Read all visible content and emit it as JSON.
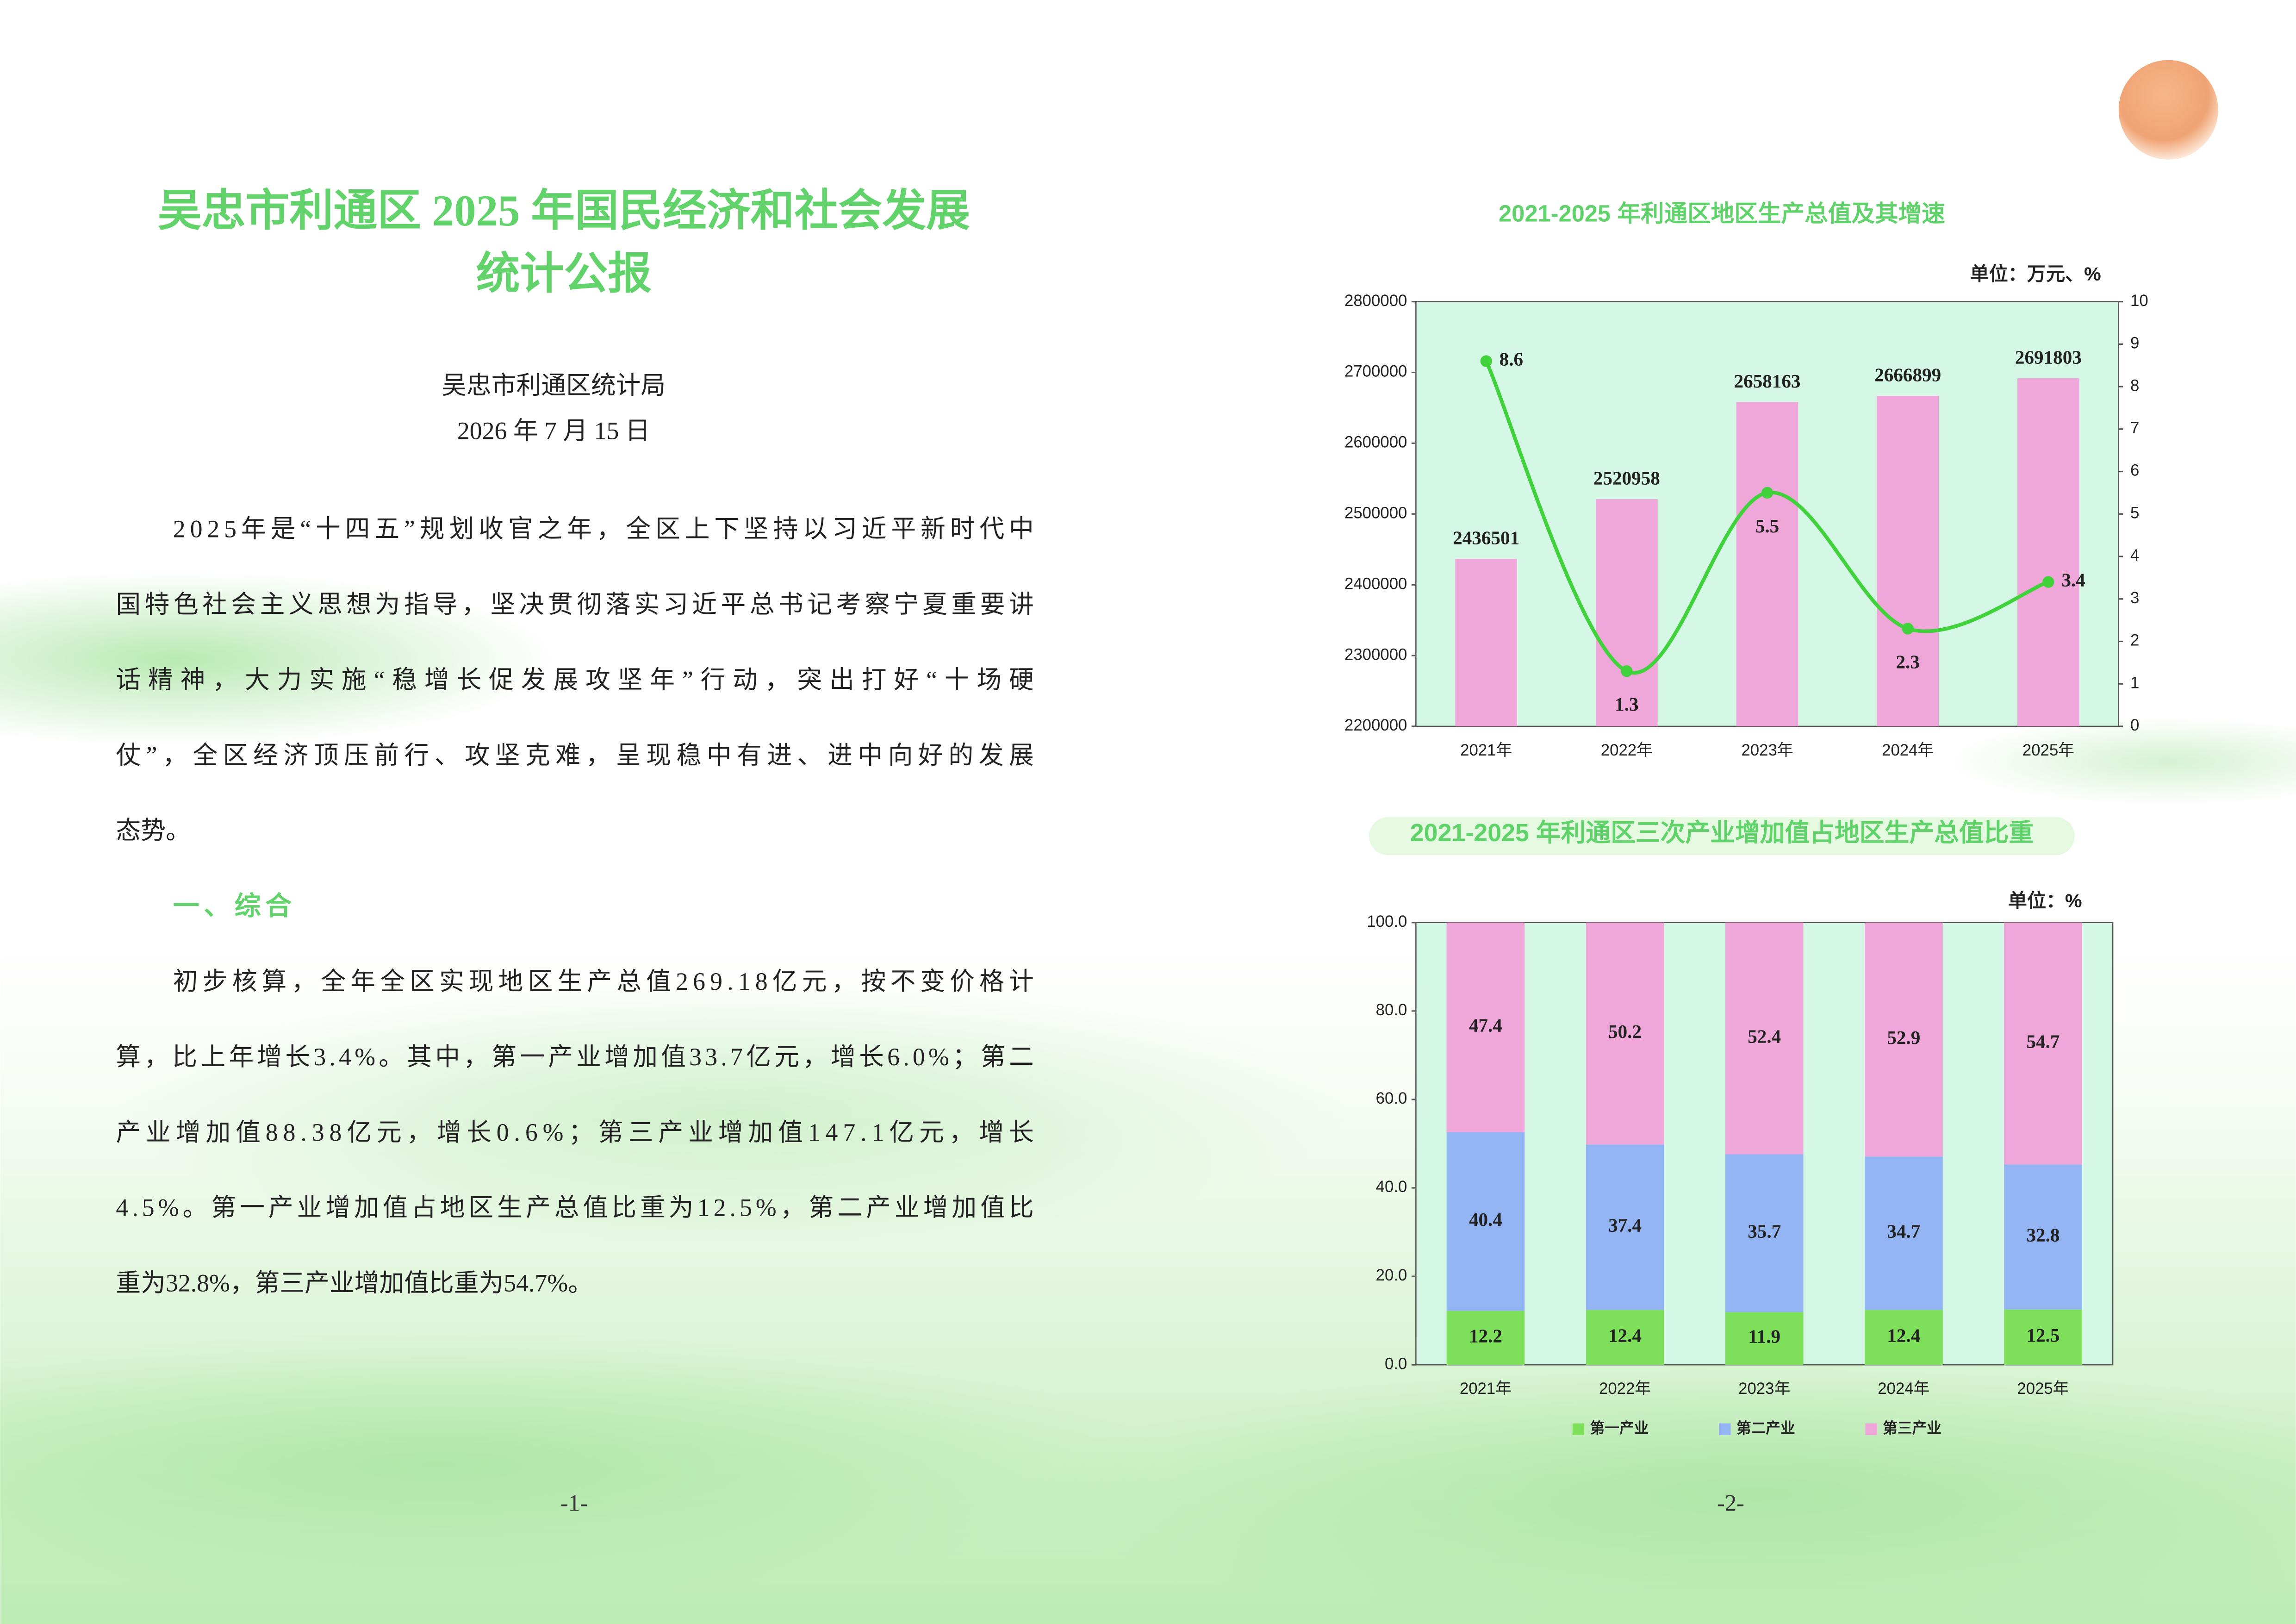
{
  "page1": {
    "title": [
      "吴忠市利通区 2025 年国民经济和社会发展",
      "统计公报"
    ],
    "author": "吴忠市利通区统计局",
    "date": "2026 年 7 月 15 日",
    "paragraphs": [
      [
        "2025年是“十四五”规划收官之年，全区上下坚持以习近平新时代中",
        "国特色社会主义思想为指导，坚决贯彻落实习近平总书记考察宁夏重要讲",
        "话精神，大力实施“稳增长促发展攻坚年”行动，突出打好“十场硬",
        "仗”，全区经济顶压前行、攻坚克难，呈现稳中有进、进中向好的发展",
        "态势。"
      ],
      [
        "初步核算，全年全区实现地区生产总值269.18亿元，按不变价格计",
        "算，比上年增长3.4%。其中，第一产业增加值33.7亿元，增长6.0%；第二",
        "产业增加值88.38亿元，增长0.6%；第三产业增加值147.1亿元，增长",
        "4.5%。第一产业增加值占地区生产总值比重为12.5%，第二产业增加值比",
        "重为32.8%，第三产业增加值比重为54.7%。"
      ]
    ],
    "section_heading": "一、综合",
    "page_number": "-1-"
  },
  "page2": {
    "page_number": "-2-"
  },
  "chart_data": [
    {
      "type": "combo",
      "title": "2021-2025 年利通区地区生产总值及其增速",
      "unit": "单位：万元、%",
      "categories": [
        "2021年",
        "2022年",
        "2023年",
        "2024年",
        "2025年"
      ],
      "series": [
        {
          "type": "bar",
          "color": "#efa6d8",
          "values": [
            2436501,
            2520958,
            2658163,
            2666899,
            2691803
          ]
        },
        {
          "type": "line",
          "axis": "y2",
          "color": "#3fd23a",
          "values": [
            8.6,
            1.3,
            5.5,
            2.3,
            3.4
          ]
        }
      ],
      "ylim": [
        2200000,
        2800000
      ],
      "yticks": [
        2200000,
        2300000,
        2400000,
        2500000,
        2600000,
        2700000,
        2800000
      ],
      "y2lim": [
        0,
        10
      ],
      "y2ticks": [
        0,
        1,
        2,
        3,
        4,
        5,
        6,
        7,
        8,
        9,
        10
      ],
      "grid": false,
      "background": "#d5f8e6"
    },
    {
      "type": "stacked_bar",
      "title": "2021-2025 年利通区三次产业增加值占地区生产总值比重",
      "unit": "单位：%",
      "categories": [
        "2021年",
        "2022年",
        "2023年",
        "2024年",
        "2025年"
      ],
      "series": [
        {
          "name": "第一产业",
          "color": "#7ee05a",
          "values": [
            12.2,
            12.4,
            11.9,
            12.4,
            12.5
          ]
        },
        {
          "name": "第二产业",
          "color": "#93b4f3",
          "values": [
            40.4,
            37.4,
            35.7,
            34.7,
            32.8
          ]
        },
        {
          "name": "第三产业",
          "color": "#efa6d8",
          "values": [
            47.4,
            50.2,
            52.4,
            52.9,
            54.7
          ]
        }
      ],
      "ylim": [
        0,
        100
      ],
      "yticks": [
        {
          "value": 0,
          "label": "0.0"
        },
        {
          "value": 20,
          "label": "20.0"
        },
        {
          "value": 40,
          "label": "40.0"
        },
        {
          "value": 60,
          "label": "60.0"
        },
        {
          "value": 80,
          "label": "80.0"
        },
        {
          "value": 100,
          "label": "100.0"
        }
      ],
      "grid": false,
      "legend": "bottom",
      "background": "#d5f8e6"
    }
  ]
}
